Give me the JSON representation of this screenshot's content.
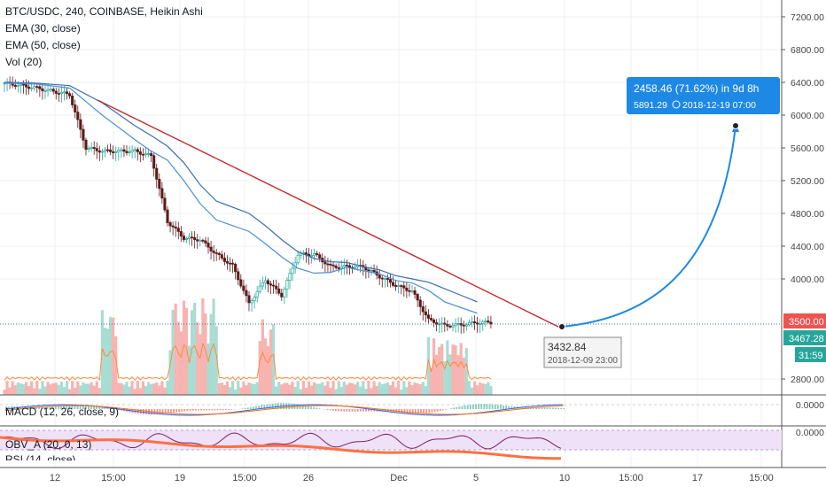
{
  "legend": {
    "symbol_line": "BTC/USDC, 240, COINBASE, Heikin Ashi",
    "ema30": "EMA (30, close)",
    "ema50": "EMA (50, close)",
    "vol": "Vol (20)"
  },
  "panes": {
    "macd_label": "MACD (12, 26, close, 9)",
    "macd_value": "0.0000",
    "obv_label": "OBV_A (20, 0, 13)",
    "obv_value": "0.0000",
    "rsi_label": "RSI (14, close)"
  },
  "price_tags": {
    "target": "3500.00",
    "last": "3467.28",
    "timer": "31:59"
  },
  "projection": {
    "line1": "2458.46 (71.62%) in 9d 8h",
    "line2_price": "5891.29",
    "line2_time": "2018-12-19  07:00"
  },
  "low_tooltip": {
    "price": "3432.84",
    "time": "2018-12-09 23:00"
  },
  "colors": {
    "up": "#26a69a",
    "down": "#ef5350",
    "candle_body_dark": "#5d1a1a",
    "ema30": "#4a90d9",
    "ema50": "#3b6fb0",
    "trendline": "#c62828",
    "projection": "#1e88e5",
    "target_tag": "#ef5350",
    "last_tag": "#26a69a"
  },
  "chart_data": {
    "type": "line",
    "title": "BTC/USDC, 240, COINBASE, Heikin Ashi",
    "chart_style": "Heikin Ashi candles with EMA overlays and volume",
    "x_tick_labels": [
      "12",
      "15:00",
      "19",
      "15:00",
      "26",
      "Dec",
      "5",
      "10",
      "15:00",
      "17",
      "15:00"
    ],
    "y_tick_labels": [
      "7200.00",
      "6800.00",
      "6400.00",
      "6000.00",
      "5600.00",
      "5200.00",
      "4800.00",
      "4400.00",
      "4000.00",
      "2800.00"
    ],
    "ylim": [
      2400,
      7350
    ],
    "series": [
      {
        "name": "EMA (30, close)",
        "x": [
          "11-10",
          "11-12",
          "11-14",
          "11-16",
          "11-18",
          "11-19",
          "11-20",
          "11-21",
          "11-22",
          "11-23",
          "11-25",
          "11-26",
          "11-27",
          "11-28",
          "11-29",
          "11-30",
          "12-01",
          "12-02",
          "12-03",
          "12-04",
          "12-05",
          "12-06",
          "12-07",
          "12-08",
          "12-09"
        ],
        "values": [
          6390,
          6380,
          6330,
          6000,
          5700,
          5560,
          5450,
          5200,
          4920,
          4720,
          4580,
          4430,
          4270,
          4130,
          4070,
          4080,
          4140,
          4100,
          4060,
          3980,
          3950,
          3860,
          3720,
          3650,
          3580
        ]
      },
      {
        "name": "EMA (50, close)",
        "x": [
          "11-10",
          "11-12",
          "11-14",
          "11-16",
          "11-18",
          "11-19",
          "11-20",
          "11-21",
          "11-22",
          "11-23",
          "11-25",
          "11-26",
          "11-27",
          "11-28",
          "11-29",
          "11-30",
          "12-01",
          "12-02",
          "12-03",
          "12-04",
          "12-05",
          "12-06",
          "12-07",
          "12-08",
          "12-09"
        ],
        "values": [
          6400,
          6390,
          6360,
          6150,
          5870,
          5750,
          5620,
          5420,
          5150,
          4950,
          4800,
          4650,
          4480,
          4330,
          4250,
          4210,
          4200,
          4150,
          4110,
          4040,
          4000,
          3960,
          3880,
          3800,
          3720
        ]
      },
      {
        "name": "Heikin Ashi close (approx.)",
        "x": [
          "11-10",
          "11-12",
          "11-14",
          "11-15",
          "11-16",
          "11-18",
          "11-19",
          "11-20",
          "11-21",
          "11-22",
          "11-23",
          "11-24",
          "11-25",
          "11-26",
          "11-27",
          "11-28",
          "11-29",
          "11-30",
          "12-01",
          "12-02",
          "12-03",
          "12-04",
          "12-05",
          "12-06",
          "12-07",
          "12-08",
          "12-09"
        ],
        "values": [
          6390,
          6330,
          6250,
          5600,
          5560,
          5560,
          5500,
          4700,
          4500,
          4480,
          4300,
          4160,
          3700,
          3990,
          3800,
          4300,
          4300,
          4150,
          4150,
          4150,
          4030,
          3920,
          3850,
          3500,
          3430,
          3440,
          3467.28
        ]
      }
    ],
    "annotations": [
      {
        "type": "trendline",
        "from": {
          "x": "11-10",
          "y": 6390
        },
        "to": {
          "x": "12-09",
          "y": 3480
        }
      },
      {
        "type": "projection",
        "from": {
          "x": "12-09 23:00",
          "y": 3432.84
        },
        "to": {
          "x": "2018-12-19 07:00",
          "y": 5891.29
        },
        "change": "2458.46 (71.62%) in 9d 8h"
      },
      {
        "type": "horizontal_line",
        "y": 3500.0
      }
    ],
    "grid": true,
    "legend_position": "top-left"
  }
}
